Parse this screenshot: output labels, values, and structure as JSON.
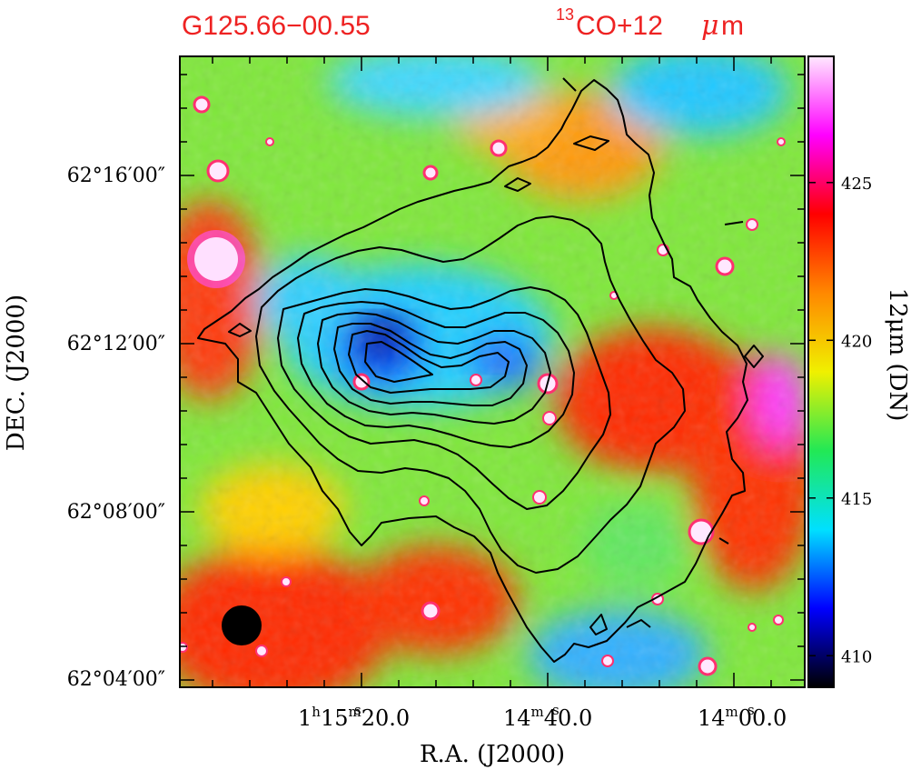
{
  "header": {
    "source_name": "G125.66−00.55",
    "tracer_prefix_sup": "13",
    "tracer_label": "CO+12",
    "tracer_mu": "μ",
    "tracer_unit": "m",
    "title_color": "#ee2222"
  },
  "chart_data": {
    "type": "heatmap",
    "title": "G125.66−00.55   13CO+12μm",
    "xlabel": "R.A. (J2000)",
    "ylabel": "DEC. (J2000)",
    "x_ticks": [
      {
        "h": "1",
        "hsup": "h",
        "m": "15",
        "msup": "m",
        "s": "20.0",
        "ssup": "s"
      },
      {
        "m": "14",
        "msup": "m",
        "s": "40.0",
        "ssup": "s"
      },
      {
        "m": "14",
        "msup": "m",
        "s": "00.0",
        "ssup": "s"
      }
    ],
    "y_ticks": [
      "62°16′00″",
      "62°12′00″",
      "62°08′00″",
      "62°04′00″"
    ],
    "colorbar": {
      "label": "12μm (DN)",
      "ticks": [
        410,
        415,
        420,
        425
      ],
      "range": [
        409,
        429
      ],
      "colormap": [
        "#000000",
        "#0000ff",
        "#00e0ff",
        "#22e855",
        "#f0f000",
        "#ff8800",
        "#ff0000",
        "#ff00ff",
        "#ffe8ff"
      ]
    },
    "background_level": 419,
    "contours": "13CO integrated intensity, nested closed contours peaking near RA 1h15m15s, Dec +62°12′",
    "beam": "filled circle, lower-left corner",
    "grid": false,
    "legend": "none"
  }
}
